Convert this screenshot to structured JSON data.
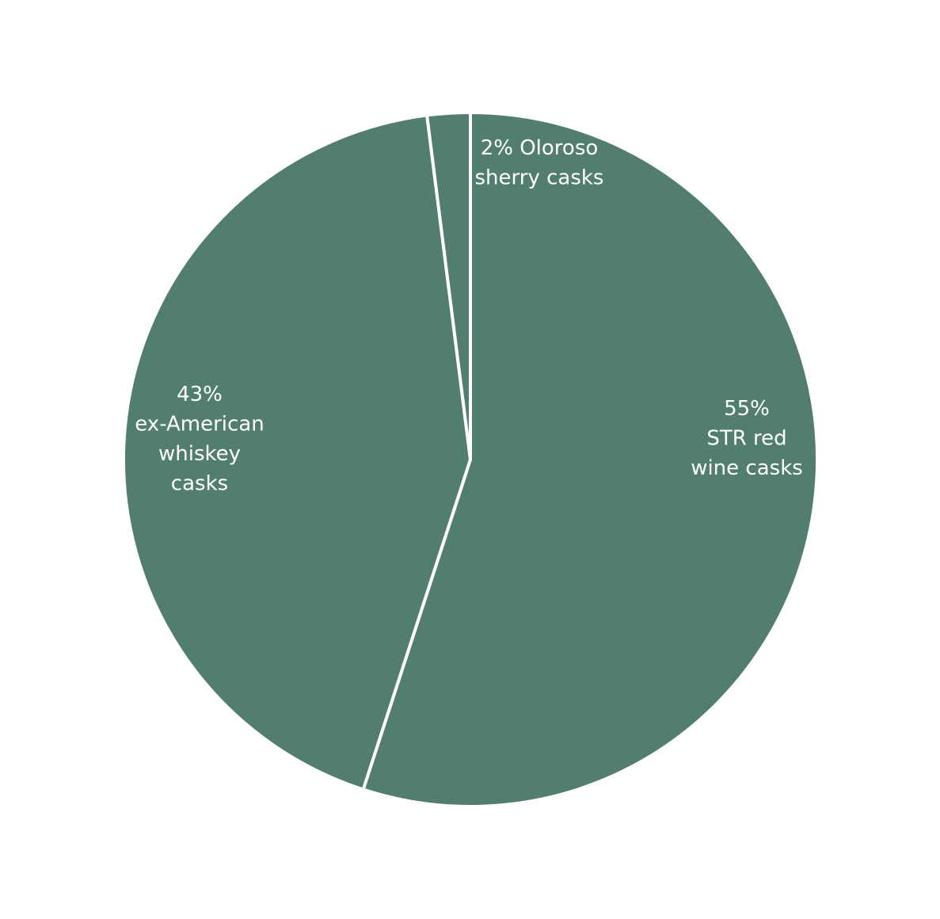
{
  "chart_data": {
    "type": "pie",
    "colors": {
      "slice": "#527e71",
      "separator": "#ffffff",
      "label": "#ffffff",
      "background": "#ffffff"
    },
    "slices": [
      {
        "id": "str-red-wine",
        "value": 55,
        "label_lines": [
          "55%",
          "STR red",
          "wine casks"
        ]
      },
      {
        "id": "ex-american-whiskey",
        "value": 43,
        "label_lines": [
          "43%",
          "ex-American",
          "whiskey",
          "casks"
        ]
      },
      {
        "id": "oloroso-sherry",
        "value": 2,
        "label_lines": [
          "2% Oloroso",
          "sherry casks"
        ]
      }
    ]
  }
}
